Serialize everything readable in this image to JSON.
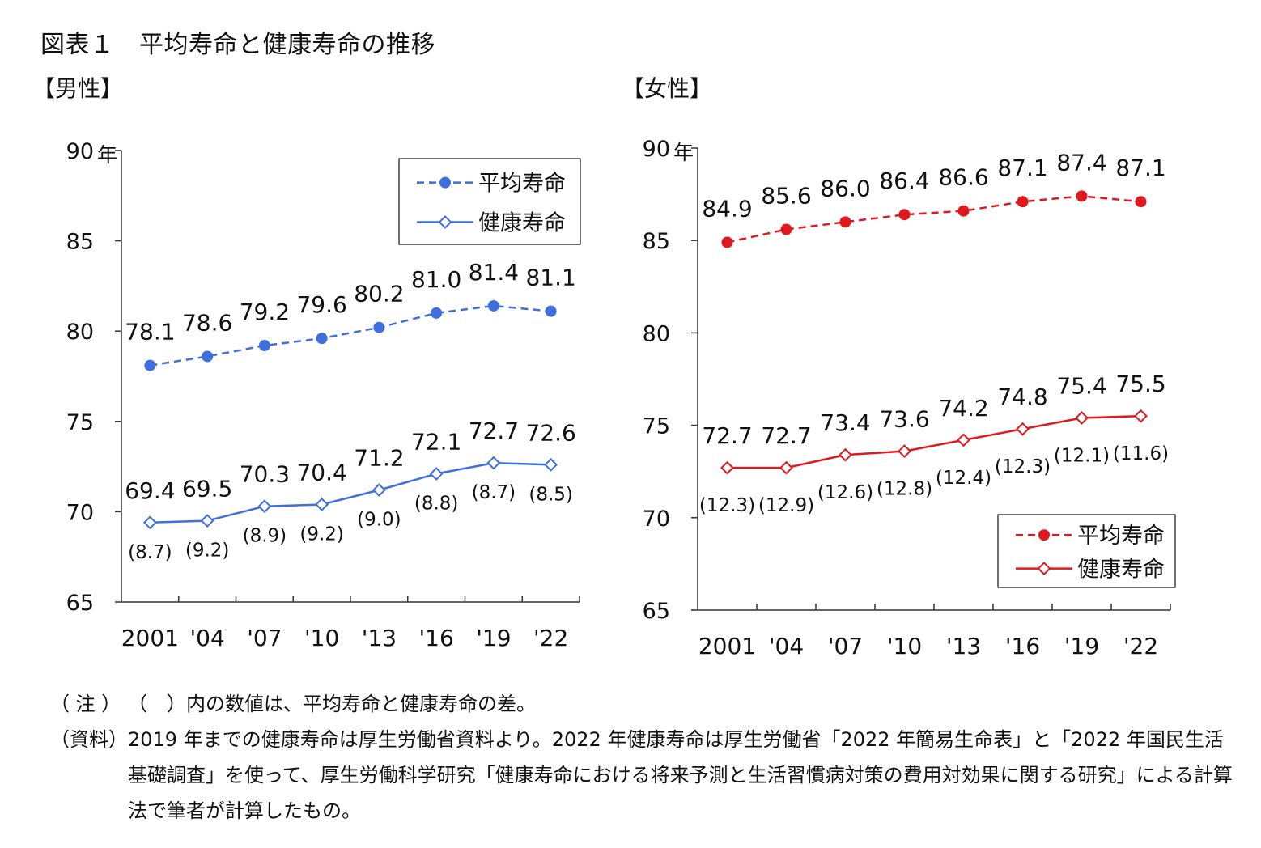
{
  "title": "図表１　平均寿命と健康寿命の推移",
  "panels": {
    "male": {
      "label": "【男性】"
    },
    "female": {
      "label": "【女性】"
    }
  },
  "colors": {
    "male": "#3f6fdc",
    "female": "#e0191e",
    "axis": "#333333"
  },
  "chart_data": [
    {
      "type": "line",
      "panel": "【男性】",
      "categories": [
        "2001",
        "'04",
        "'07",
        "'10",
        "'13",
        "'16",
        "'19",
        "'22"
      ],
      "y_unit": "年",
      "ylim": [
        65,
        90
      ],
      "yticks": [
        65,
        70,
        75,
        80,
        85,
        90
      ],
      "legend_position": "top-right",
      "series": [
        {
          "name": "平均寿命",
          "style": "dashed",
          "marker": "filled-circle",
          "values": [
            78.1,
            78.6,
            79.2,
            79.6,
            80.2,
            81.0,
            81.4,
            81.1
          ],
          "labels": [
            "78.1",
            "78.6",
            "79.2",
            "79.6",
            "80.2",
            "81.0",
            "81.4",
            "81.1"
          ]
        },
        {
          "name": "健康寿命",
          "style": "solid",
          "marker": "open-diamond",
          "values": [
            69.4,
            69.5,
            70.3,
            70.4,
            71.2,
            72.1,
            72.7,
            72.6
          ],
          "labels": [
            "69.4",
            "69.5",
            "70.3",
            "70.4",
            "71.2",
            "72.1",
            "72.7",
            "72.6"
          ]
        }
      ],
      "differences": [
        "(8.7)",
        "(9.2)",
        "(8.9)",
        "(9.2)",
        "(9.0)",
        "(8.8)",
        "(8.7)",
        "(8.5)"
      ]
    },
    {
      "type": "line",
      "panel": "【女性】",
      "categories": [
        "2001",
        "'04",
        "'07",
        "'10",
        "'13",
        "'16",
        "'19",
        "'22"
      ],
      "y_unit": "年",
      "ylim": [
        65,
        90
      ],
      "yticks": [
        65,
        70,
        75,
        80,
        85,
        90
      ],
      "legend_position": "bottom-right",
      "series": [
        {
          "name": "平均寿命",
          "style": "dashed",
          "marker": "filled-circle",
          "values": [
            84.9,
            85.6,
            86.0,
            86.4,
            86.6,
            87.1,
            87.4,
            87.1
          ],
          "labels": [
            "84.9",
            "85.6",
            "86.0",
            "86.4",
            "86.6",
            "87.1",
            "87.4",
            "87.1"
          ]
        },
        {
          "name": "健康寿命",
          "style": "solid",
          "marker": "open-diamond",
          "values": [
            72.7,
            72.7,
            73.4,
            73.6,
            74.2,
            74.8,
            75.4,
            75.5
          ],
          "labels": [
            "72.7",
            "72.7",
            "73.4",
            "73.6",
            "74.2",
            "74.8",
            "75.4",
            "75.5"
          ]
        }
      ],
      "differences": [
        "(12.3)",
        "(12.9)",
        "(12.6)",
        "(12.8)",
        "(12.4)",
        "(12.3)",
        "(12.1)",
        "(11.6)"
      ]
    }
  ],
  "notes": [
    {
      "key": "（ 注 ）",
      "text": "（　）内の数値は、平均寿命と健康寿命の差。"
    },
    {
      "key": "（資料）",
      "text": "2019 年までの健康寿命は厚生労働省資料より。2022 年健康寿命は厚生労働省「2022 年簡易生命表」と「2022 年国民生活基礎調査」を使って、厚生労働科学研究「健康寿命における将来予測と生活習慣病対策の費用対効果に関する研究」による計算法で筆者が計算したもの。"
    }
  ]
}
